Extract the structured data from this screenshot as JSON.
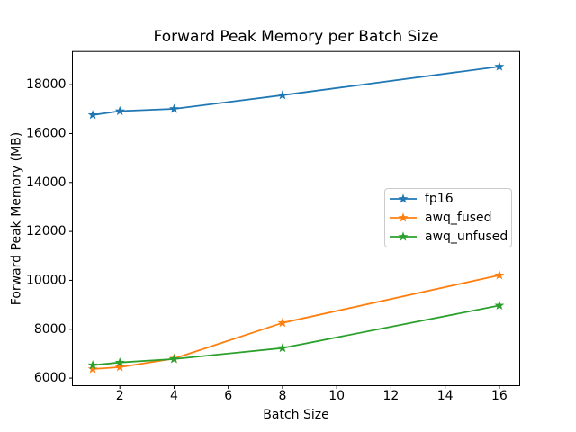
{
  "chart_data": {
    "type": "line",
    "title": "Forward Peak Memory per Batch Size",
    "xlabel": "Batch Size",
    "ylabel": "Forward Peak Memory (MB)",
    "x": [
      1,
      2,
      4,
      8,
      16
    ],
    "series": [
      {
        "name": "fp16",
        "color": "#1f77b4",
        "values": [
          16760,
          16920,
          17010,
          17570,
          18740
        ]
      },
      {
        "name": "awq_fused",
        "color": "#ff7f0e",
        "values": [
          6370,
          6450,
          6800,
          8260,
          10210
        ]
      },
      {
        "name": "awq_unfused",
        "color": "#2ca02c",
        "values": [
          6530,
          6640,
          6780,
          7230,
          8970
        ]
      }
    ],
    "marker": "star",
    "xlim": [
      0.25,
      16.75
    ],
    "ylim": [
      5690,
      19360
    ],
    "xticks": [
      2,
      4,
      6,
      8,
      10,
      12,
      14,
      16
    ],
    "yticks": [
      6000,
      8000,
      10000,
      12000,
      14000,
      16000,
      18000
    ],
    "grid": false,
    "legend_position": "center right",
    "background_color": "#ffffff",
    "spine_color": "#000000"
  }
}
